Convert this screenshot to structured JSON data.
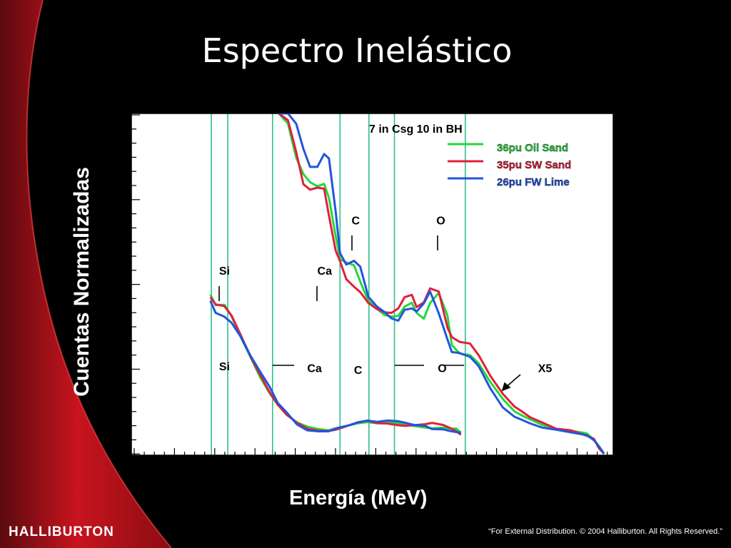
{
  "slide": {
    "title": "Espectro Inelástico",
    "logo": "HALLIBURTON",
    "footer": "“For External Distribution. © 2004 Halliburton. All Rights Reserved.”"
  },
  "colors": {
    "background": "#000000",
    "accent_red": "#c8141e",
    "plot_bg": "#ffffff",
    "marker_lines": "#2fbf8c"
  },
  "chart_data": {
    "type": "line",
    "title": "7 in Csg  10 in BH",
    "xlabel": "Energía  (MeV)",
    "ylabel": "Cuentas Normalizadas",
    "xlim": [
      0,
      100
    ],
    "ylim": [
      0,
      100
    ],
    "x_ticks_labeled": false,
    "y_ticks_labeled": false,
    "legend_position": "top-right",
    "series": [
      {
        "name": "36pu Oil Sand",
        "color": "#22d83a",
        "upper_x5": [
          [
            16.4,
            46.8
          ],
          [
            17.5,
            43.7
          ],
          [
            19.3,
            43.8
          ],
          [
            20.8,
            40.4
          ],
          [
            22.7,
            34.3
          ],
          [
            24.7,
            28.5
          ],
          [
            26.7,
            22.6
          ],
          [
            28.7,
            17.8
          ],
          [
            30.4,
            14.4
          ],
          [
            32.2,
            11.5
          ],
          [
            34.4,
            9.2
          ],
          [
            36.5,
            8.0
          ],
          [
            38.8,
            7.3
          ],
          [
            40.9,
            6.9
          ],
          [
            42.5,
            7.5
          ],
          [
            45.0,
            8.3
          ],
          [
            47.1,
            9.0
          ],
          [
            49.0,
            9.3
          ],
          [
            51.0,
            9.0
          ],
          [
            53.1,
            9.2
          ],
          [
            55.3,
            9.0
          ],
          [
            56.9,
            8.7
          ],
          [
            58.6,
            8.2
          ],
          [
            61.0,
            7.7
          ],
          [
            62.4,
            7.5
          ],
          [
            64.7,
            7.7
          ],
          [
            66.1,
            7.4
          ],
          [
            67.4,
            7.4
          ],
          [
            68.4,
            6.2
          ]
        ],
        "upper": [
          [
            30.6,
            100.0
          ],
          [
            32.5,
            97.0
          ],
          [
            34.2,
            87.0
          ],
          [
            35.7,
            82.2
          ],
          [
            37.1,
            79.8
          ],
          [
            38.6,
            78.6
          ],
          [
            40.0,
            79.3
          ],
          [
            41.0,
            75.2
          ],
          [
            42.4,
            64.0
          ],
          [
            43.3,
            57.2
          ],
          [
            44.6,
            56.2
          ],
          [
            46.2,
            55.4
          ],
          [
            47.5,
            50.6
          ],
          [
            49.2,
            44.9
          ],
          [
            51.0,
            42.6
          ],
          [
            52.5,
            40.8
          ],
          [
            54.0,
            40.3
          ],
          [
            55.4,
            40.5
          ],
          [
            56.7,
            43.2
          ],
          [
            58.2,
            44.4
          ],
          [
            59.2,
            41.4
          ],
          [
            60.7,
            39.7
          ],
          [
            62.0,
            44.3
          ],
          [
            63.8,
            47.3
          ],
          [
            65.6,
            40.6
          ],
          [
            66.5,
            32.0
          ],
          [
            68.1,
            29.5
          ],
          [
            70.3,
            29.0
          ],
          [
            72.1,
            26.5
          ],
          [
            74.5,
            21.1
          ],
          [
            77.1,
            16.1
          ],
          [
            79.5,
            12.5
          ],
          [
            81.0,
            11.3
          ],
          [
            82.8,
            10.1
          ],
          [
            85.3,
            8.5
          ],
          [
            88.1,
            7.3
          ],
          [
            91.2,
            6.8
          ],
          [
            94.5,
            6.0
          ],
          [
            96.0,
            4.2
          ],
          [
            97.0,
            2.3
          ],
          [
            98.1,
            0.0
          ]
        ]
      },
      {
        "name": "35pu SW Sand",
        "color": "#e0203a",
        "upper_x5": [
          [
            16.4,
            46.0
          ],
          [
            17.5,
            43.9
          ],
          [
            19.3,
            43.4
          ],
          [
            20.8,
            40.6
          ],
          [
            22.7,
            34.9
          ],
          [
            24.7,
            28.7
          ],
          [
            26.7,
            23.3
          ],
          [
            28.7,
            18.1
          ],
          [
            30.4,
            14.4
          ],
          [
            32.2,
            11.5
          ],
          [
            34.4,
            9.1
          ],
          [
            36.5,
            7.4
          ],
          [
            38.8,
            6.8
          ],
          [
            40.9,
            6.7
          ],
          [
            42.5,
            7.1
          ],
          [
            45.0,
            8.3
          ],
          [
            47.1,
            9.3
          ],
          [
            49.0,
            9.7
          ],
          [
            51.0,
            9.0
          ],
          [
            53.1,
            8.9
          ],
          [
            55.3,
            8.4
          ],
          [
            56.9,
            8.2
          ],
          [
            58.6,
            8.4
          ],
          [
            61.0,
            8.7
          ],
          [
            62.4,
            9.1
          ],
          [
            64.7,
            8.5
          ],
          [
            66.1,
            7.6
          ],
          [
            67.4,
            6.6
          ],
          [
            68.4,
            5.6
          ]
        ],
        "upper": [
          [
            30.6,
            100.0
          ],
          [
            32.5,
            98.0
          ],
          [
            34.2,
            88.7
          ],
          [
            35.7,
            79.2
          ],
          [
            37.1,
            77.6
          ],
          [
            38.6,
            78.2
          ],
          [
            40.0,
            77.9
          ],
          [
            41.0,
            70.0
          ],
          [
            42.4,
            59.7
          ],
          [
            43.3,
            56.6
          ],
          [
            44.6,
            51.3
          ],
          [
            46.2,
            49.1
          ],
          [
            47.5,
            47.5
          ],
          [
            49.2,
            44.3
          ],
          [
            51.0,
            42.5
          ],
          [
            52.5,
            41.6
          ],
          [
            54.0,
            41.4
          ],
          [
            55.4,
            42.7
          ],
          [
            56.7,
            46.0
          ],
          [
            58.2,
            46.7
          ],
          [
            59.2,
            43.1
          ],
          [
            60.7,
            44.5
          ],
          [
            62.0,
            48.6
          ],
          [
            63.8,
            47.7
          ],
          [
            65.6,
            37.1
          ],
          [
            66.5,
            34.3
          ],
          [
            68.1,
            32.9
          ],
          [
            70.3,
            32.4
          ],
          [
            72.1,
            28.9
          ],
          [
            74.5,
            22.9
          ],
          [
            77.1,
            17.6
          ],
          [
            79.5,
            13.9
          ],
          [
            81.0,
            12.5
          ],
          [
            82.8,
            10.7
          ],
          [
            85.3,
            9.2
          ],
          [
            88.1,
            7.4
          ],
          [
            91.2,
            6.9
          ],
          [
            94.5,
            5.3
          ],
          [
            96.0,
            4.4
          ],
          [
            97.0,
            1.7
          ],
          [
            98.1,
            0.0
          ]
        ]
      },
      {
        "name": "26pu FW Lime",
        "color": "#2255dd",
        "upper_x5": [
          [
            16.4,
            45.0
          ],
          [
            17.5,
            41.4
          ],
          [
            19.3,
            40.3
          ],
          [
            20.8,
            38.5
          ],
          [
            22.7,
            34.4
          ],
          [
            24.7,
            28.9
          ],
          [
            26.7,
            24.2
          ],
          [
            28.7,
            19.7
          ],
          [
            30.4,
            14.9
          ],
          [
            32.2,
            12.2
          ],
          [
            34.4,
            8.6
          ],
          [
            36.5,
            6.9
          ],
          [
            38.8,
            6.6
          ],
          [
            40.9,
            6.6
          ],
          [
            42.5,
            7.5
          ],
          [
            45.0,
            8.3
          ],
          [
            47.1,
            9.2
          ],
          [
            49.0,
            9.8
          ],
          [
            51.0,
            9.4
          ],
          [
            53.1,
            9.8
          ],
          [
            55.3,
            9.6
          ],
          [
            56.9,
            9.1
          ],
          [
            58.6,
            8.5
          ],
          [
            61.0,
            8.2
          ],
          [
            62.4,
            7.3
          ],
          [
            64.7,
            7.2
          ],
          [
            66.1,
            6.7
          ],
          [
            67.4,
            6.4
          ],
          [
            68.4,
            6.2
          ]
        ],
        "upper": [
          [
            30.6,
            100.0
          ],
          [
            32.5,
            100.0
          ],
          [
            34.2,
            97.0
          ],
          [
            35.7,
            89.6
          ],
          [
            37.1,
            84.3
          ],
          [
            38.6,
            84.3
          ],
          [
            40.0,
            88.1
          ],
          [
            41.0,
            86.8
          ],
          [
            42.4,
            71.2
          ],
          [
            43.3,
            59.0
          ],
          [
            44.6,
            55.6
          ],
          [
            46.2,
            56.7
          ],
          [
            47.5,
            55.0
          ],
          [
            49.2,
            46.1
          ],
          [
            51.0,
            43.2
          ],
          [
            52.5,
            41.7
          ],
          [
            54.0,
            39.8
          ],
          [
            55.4,
            39.1
          ],
          [
            56.7,
            42.3
          ],
          [
            58.2,
            42.7
          ],
          [
            59.2,
            41.8
          ],
          [
            60.7,
            44.2
          ],
          [
            62.0,
            47.7
          ],
          [
            63.8,
            41.3
          ],
          [
            65.6,
            33.6
          ],
          [
            66.5,
            29.9
          ],
          [
            68.1,
            29.6
          ],
          [
            70.3,
            28.5
          ],
          [
            72.1,
            25.7
          ],
          [
            74.5,
            19.2
          ],
          [
            77.1,
            13.6
          ],
          [
            79.5,
            10.9
          ],
          [
            81.0,
            10.0
          ],
          [
            82.8,
            8.9
          ],
          [
            85.3,
            7.7
          ],
          [
            88.1,
            7.1
          ],
          [
            91.2,
            6.3
          ],
          [
            94.5,
            5.5
          ],
          [
            96.0,
            4.0
          ],
          [
            97.0,
            2.2
          ],
          [
            98.1,
            0.0
          ]
        ]
      }
    ],
    "marker_lines_x": [
      16.6,
      20.0,
      29.3,
      43.3,
      49.3,
      54.6,
      69.3
    ],
    "annotations": {
      "upper": [
        {
          "text": "Si",
          "x": 18.2,
          "y": 52.6
        },
        {
          "text": "Ca",
          "x": 38.6,
          "y": 52.6
        },
        {
          "text": "C",
          "x": 45.7,
          "y": 67.4
        },
        {
          "text": "O",
          "x": 63.3,
          "y": 67.4
        }
      ],
      "lower": [
        {
          "text": "Si",
          "x": 18.2,
          "y": 24.5
        },
        {
          "text": "Ca",
          "x": 36.5,
          "y": 24.0
        },
        {
          "text": "C",
          "x": 46.2,
          "y": 23.5
        },
        {
          "text": "O",
          "x": 63.6,
          "y": 24.0
        },
        {
          "text": "X5",
          "x": 84.4,
          "y": 24.0
        }
      ]
    }
  }
}
